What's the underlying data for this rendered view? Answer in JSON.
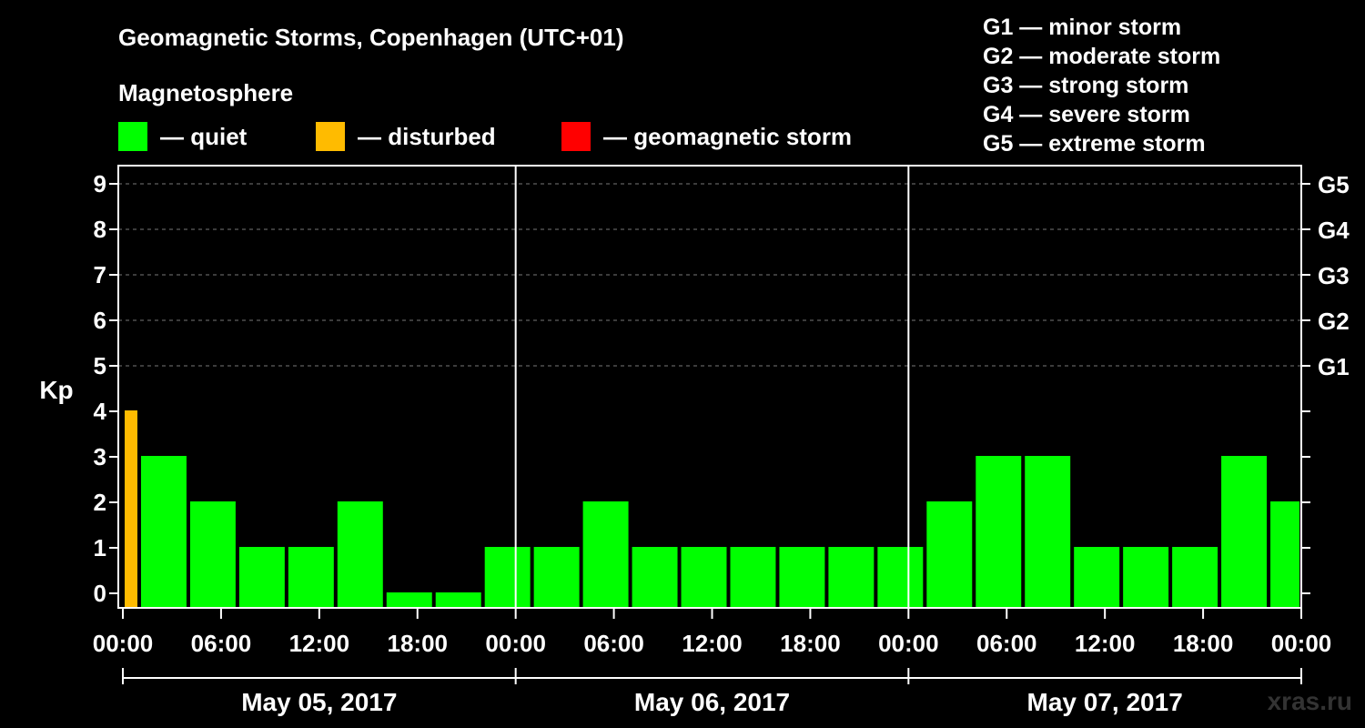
{
  "header": {
    "title": "Geomagnetic Storms, Copenhagen (UTC+01)",
    "magnetosphere_label": "Magnetosphere"
  },
  "legend": [
    {
      "label": "— quiet",
      "color": "#00ff00"
    },
    {
      "label": "— disturbed",
      "color": "#ffbb00"
    },
    {
      "label": "— geomagnetic storm",
      "color": "#ff0000"
    }
  ],
  "g_scale": [
    "G1 — minor storm",
    "G2 — moderate storm",
    "G3 — strong storm",
    "G4 — severe storm",
    "G5 — extreme storm"
  ],
  "brand": "xras.ru",
  "chart_data": {
    "type": "bar",
    "ylabel": "Kp",
    "ylim": [
      0,
      9
    ],
    "y_ticks": [
      "0",
      "1",
      "2",
      "3",
      "4",
      "5",
      "6",
      "7",
      "8",
      "9"
    ],
    "right_ticks": [
      {
        "kp": 5,
        "label": "G1"
      },
      {
        "kp": 6,
        "label": "G2"
      },
      {
        "kp": 7,
        "label": "G3"
      },
      {
        "kp": 8,
        "label": "G4"
      },
      {
        "kp": 9,
        "label": "G5"
      }
    ],
    "x_tick_labels": [
      "00:00",
      "06:00",
      "12:00",
      "18:00",
      "00:00",
      "06:00",
      "12:00",
      "18:00",
      "00:00",
      "06:00",
      "12:00",
      "18:00",
      "00:00"
    ],
    "days": [
      "May 05, 2017",
      "May 06, 2017",
      "May 07, 2017"
    ],
    "grid": "dashed horizontal at Kp 5-9",
    "bars": [
      {
        "start_hour": 0,
        "end_hour": 1,
        "kp": 4,
        "status": "disturbed"
      },
      {
        "start_hour": 1,
        "end_hour": 4,
        "kp": 3,
        "status": "quiet"
      },
      {
        "start_hour": 4,
        "end_hour": 7,
        "kp": 2,
        "status": "quiet"
      },
      {
        "start_hour": 7,
        "end_hour": 10,
        "kp": 1,
        "status": "quiet"
      },
      {
        "start_hour": 10,
        "end_hour": 13,
        "kp": 1,
        "status": "quiet"
      },
      {
        "start_hour": 13,
        "end_hour": 16,
        "kp": 2,
        "status": "quiet"
      },
      {
        "start_hour": 16,
        "end_hour": 19,
        "kp": 0,
        "status": "quiet"
      },
      {
        "start_hour": 19,
        "end_hour": 22,
        "kp": 0,
        "status": "quiet"
      },
      {
        "start_hour": 22,
        "end_hour": 25,
        "kp": 1,
        "status": "quiet"
      },
      {
        "start_hour": 25,
        "end_hour": 28,
        "kp": 1,
        "status": "quiet"
      },
      {
        "start_hour": 28,
        "end_hour": 31,
        "kp": 2,
        "status": "quiet"
      },
      {
        "start_hour": 31,
        "end_hour": 34,
        "kp": 1,
        "status": "quiet"
      },
      {
        "start_hour": 34,
        "end_hour": 37,
        "kp": 1,
        "status": "quiet"
      },
      {
        "start_hour": 37,
        "end_hour": 40,
        "kp": 1,
        "status": "quiet"
      },
      {
        "start_hour": 40,
        "end_hour": 43,
        "kp": 1,
        "status": "quiet"
      },
      {
        "start_hour": 43,
        "end_hour": 46,
        "kp": 1,
        "status": "quiet"
      },
      {
        "start_hour": 46,
        "end_hour": 49,
        "kp": 1,
        "status": "quiet"
      },
      {
        "start_hour": 49,
        "end_hour": 52,
        "kp": 2,
        "status": "quiet"
      },
      {
        "start_hour": 52,
        "end_hour": 55,
        "kp": 3,
        "status": "quiet"
      },
      {
        "start_hour": 55,
        "end_hour": 58,
        "kp": 3,
        "status": "quiet"
      },
      {
        "start_hour": 58,
        "end_hour": 61,
        "kp": 1,
        "status": "quiet"
      },
      {
        "start_hour": 61,
        "end_hour": 64,
        "kp": 1,
        "status": "quiet"
      },
      {
        "start_hour": 64,
        "end_hour": 67,
        "kp": 1,
        "status": "quiet"
      },
      {
        "start_hour": 67,
        "end_hour": 70,
        "kp": 3,
        "status": "quiet"
      },
      {
        "start_hour": 70,
        "end_hour": 72,
        "kp": 2,
        "status": "quiet"
      }
    ]
  }
}
